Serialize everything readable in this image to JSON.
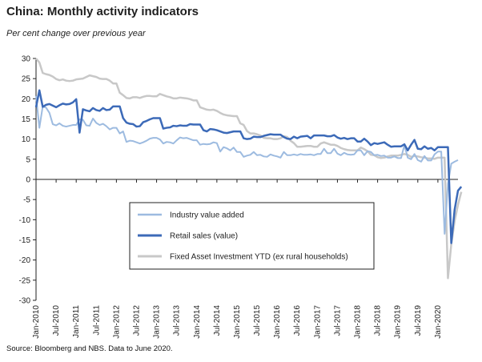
{
  "header": {
    "title": "China: Monthly activity indicators",
    "subtitle": "Per cent change over previous year"
  },
  "footer": {
    "source": "Source: Bloomberg and NBS.  Data to June 2020."
  },
  "chart_data": {
    "type": "line",
    "title": "China: Monthly activity indicators",
    "subtitle": "Per cent change over previous year",
    "ylim": [
      -30,
      30
    ],
    "yticks": [
      30,
      25,
      20,
      15,
      10,
      5,
      0,
      -5,
      -10,
      -15,
      -20,
      -25,
      -30
    ],
    "grid": false,
    "legend_position": "lower-center",
    "x_start": "Jan-2010",
    "x_end": "Jun-2020",
    "x_tick_labels": [
      "Jan-2010",
      "Jul-2010",
      "Jan-2011",
      "Jul-2011",
      "Jan-2012",
      "Jul-2012",
      "Jan-2013",
      "Jul-2013",
      "Jan-2014",
      "Jul-2014",
      "Jan-2015",
      "Jul-2015",
      "Jan-2016",
      "Jul-2016",
      "Jan-2017",
      "Jul-2017",
      "Jan-2018",
      "Jul-2018",
      "Jan-2019",
      "Jul-2019",
      "Jan-2020"
    ],
    "series": [
      {
        "name": "Industry value added",
        "color": "#9dbbe0",
        "width": 2,
        "values": [
          20.7,
          12.8,
          18.1,
          17.8,
          16.5,
          13.7,
          13.4,
          13.9,
          13.3,
          13.1,
          13.3,
          13.5,
          13.5,
          14.9,
          14.8,
          13.4,
          13.3,
          15.1,
          14.0,
          13.5,
          13.8,
          13.2,
          12.4,
          12.8,
          12.8,
          11.4,
          11.9,
          9.3,
          9.6,
          9.5,
          9.2,
          8.9,
          9.2,
          9.6,
          10.1,
          10.3,
          10.3,
          9.9,
          8.9,
          9.3,
          9.2,
          8.9,
          9.7,
          10.4,
          10.2,
          10.3,
          10.0,
          9.7,
          9.7,
          8.6,
          8.8,
          8.7,
          8.8,
          9.2,
          9.0,
          6.9,
          8.0,
          7.7,
          7.2,
          7.9,
          6.8,
          6.8,
          5.6,
          5.9,
          6.1,
          6.8,
          6.0,
          6.1,
          5.7,
          5.6,
          6.2,
          5.9,
          5.7,
          5.4,
          6.8,
          6.0,
          6.0,
          6.2,
          6.0,
          6.3,
          6.1,
          6.1,
          6.2,
          6.0,
          6.3,
          6.3,
          7.6,
          6.5,
          6.5,
          7.6,
          6.4,
          6.0,
          6.6,
          6.2,
          6.1,
          6.2,
          7.2,
          7.2,
          6.0,
          7.0,
          6.8,
          6.0,
          6.1,
          5.8,
          5.9,
          5.4,
          5.4,
          5.7,
          5.3,
          5.3,
          8.5,
          5.4,
          5.0,
          6.3,
          4.8,
          4.4,
          5.8,
          4.7,
          4.7,
          6.2,
          6.9,
          6.9,
          -13.5,
          -1.1,
          3.9,
          4.4,
          4.8
        ]
      },
      {
        "name": "Retail sales (value)",
        "color": "#3c6ab8",
        "width": 2.5,
        "values": [
          17.9,
          22.1,
          18.0,
          18.5,
          18.7,
          18.3,
          17.9,
          18.4,
          18.8,
          18.6,
          18.7,
          19.1,
          19.9,
          11.6,
          17.4,
          17.1,
          16.9,
          17.7,
          17.2,
          17.0,
          17.7,
          17.2,
          17.3,
          18.1,
          18.1,
          18.1,
          15.2,
          14.1,
          13.8,
          13.7,
          13.1,
          13.2,
          14.2,
          14.5,
          14.9,
          15.2,
          15.2,
          15.2,
          12.6,
          12.8,
          12.9,
          13.3,
          13.2,
          13.4,
          13.3,
          13.3,
          13.7,
          13.6,
          13.6,
          13.6,
          12.2,
          11.9,
          12.5,
          12.4,
          12.2,
          11.9,
          11.6,
          11.5,
          11.7,
          11.9,
          11.9,
          11.9,
          10.2,
          10.0,
          10.1,
          10.6,
          10.5,
          10.5,
          10.8,
          11.0,
          11.2,
          11.1,
          11.1,
          11.1,
          10.5,
          10.1,
          10.0,
          10.6,
          10.2,
          10.6,
          10.7,
          10.8,
          10.2,
          10.9,
          10.9,
          10.9,
          10.9,
          10.7,
          10.7,
          11.0,
          10.4,
          10.1,
          10.3,
          10.0,
          10.2,
          10.2,
          9.4,
          9.4,
          10.1,
          9.4,
          8.5,
          9.0,
          8.8,
          9.0,
          9.2,
          8.6,
          8.1,
          8.2,
          8.2,
          8.2,
          8.7,
          7.2,
          8.6,
          9.8,
          7.6,
          7.5,
          8.2,
          7.6,
          7.8,
          7.2,
          8.0,
          8.0,
          8.0,
          8.0,
          -15.8,
          -7.5,
          -2.8,
          -1.8
        ]
      },
      {
        "name": "Fixed Asset Investment YTD (ex rural households)",
        "color": "#c8c8c8",
        "width": 2.5,
        "values": [
          30,
          29.0,
          26.4,
          26.1,
          25.9,
          25.5,
          24.9,
          24.6,
          24.8,
          24.5,
          24.4,
          24.5,
          24.8,
          24.9,
          25.0,
          25.4,
          25.8,
          25.6,
          25.4,
          25.0,
          24.9,
          24.9,
          24.5,
          23.8,
          23.8,
          21.5,
          20.9,
          20.2,
          20.1,
          20.4,
          20.4,
          20.2,
          20.5,
          20.7,
          20.7,
          20.6,
          20.6,
          21.2,
          20.9,
          20.6,
          20.4,
          20.1,
          20.1,
          20.3,
          20.2,
          20.1,
          19.9,
          19.6,
          19.6,
          17.9,
          17.6,
          17.3,
          17.2,
          17.3,
          17.0,
          16.5,
          16.1,
          15.9,
          15.8,
          15.7,
          15.7,
          13.9,
          13.5,
          12.0,
          11.4,
          11.4,
          11.2,
          10.9,
          10.3,
          10.2,
          10.2,
          10.0,
          10.0,
          10.2,
          10.7,
          10.5,
          9.6,
          9.0,
          8.1,
          8.1,
          8.2,
          8.3,
          8.3,
          8.1,
          8.1,
          8.9,
          9.2,
          8.9,
          8.6,
          8.6,
          8.3,
          7.8,
          7.5,
          7.3,
          7.2,
          7.2,
          7.2,
          7.9,
          7.5,
          7.0,
          6.1,
          6.0,
          5.5,
          5.3,
          5.4,
          5.7,
          5.9,
          5.9,
          5.9,
          6.1,
          6.3,
          6.1,
          5.6,
          5.8,
          5.7,
          5.5,
          5.4,
          5.2,
          5.2,
          5.1,
          5.4,
          5.4,
          5.4,
          -24.5,
          -16.1,
          -10.3,
          -6.3,
          -3.1
        ]
      }
    ]
  }
}
